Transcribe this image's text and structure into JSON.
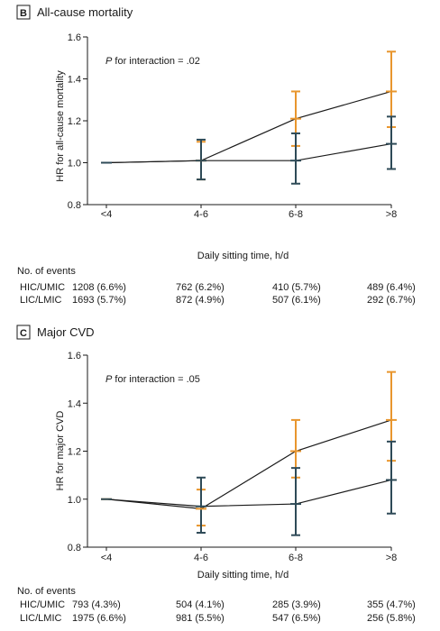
{
  "panels": [
    {
      "letter": "B",
      "title": "All-cause mortality",
      "annotation_p": "P",
      "annotation_rest": " for interaction = .02",
      "events_label": "No. of events",
      "events": [
        {
          "group": "HIC/UMIC",
          "values": [
            "1208 (6.6%)",
            "762 (6.2%)",
            "410 (5.7%)",
            "489 (6.4%)"
          ]
        },
        {
          "group": "LIC/LMIC",
          "values": [
            "1693 (5.7%)",
            "872 (4.9%)",
            "507 (6.1%)",
            "292 (6.7%)"
          ]
        }
      ]
    },
    {
      "letter": "C",
      "title": "Major CVD",
      "annotation_p": "P",
      "annotation_rest": " for interaction = .05",
      "events_label": "No. of events",
      "events": [
        {
          "group": "HIC/UMIC",
          "values": [
            "793 (4.3%)",
            "504 (4.1%)",
            "285 (3.9%)",
            "355 (4.7%)"
          ]
        },
        {
          "group": "LIC/LMIC",
          "values": [
            "1975 (6.6%)",
            "981 (5.5%)",
            "547 (6.5%)",
            "256 (5.8%)"
          ]
        }
      ]
    }
  ],
  "colors": {
    "orange": "#e8962e",
    "teal": "#2e4a57",
    "line": "#1a1a1a"
  },
  "chart_data": [
    {
      "type": "line",
      "title": "All-cause mortality",
      "xlabel": "Daily sitting time, h/d",
      "ylabel": "HR for all-cause mortality",
      "categories": [
        "<4",
        "4-6",
        "6-8",
        ">8"
      ],
      "ylim": [
        0.8,
        1.6
      ],
      "yticks": [
        "0.8",
        "1.0",
        "1.2",
        "1.4",
        "1.6"
      ],
      "series": [
        {
          "color": "orange",
          "values": [
            1.0,
            1.01,
            1.21,
            1.34
          ],
          "lower": [
            1.0,
            0.92,
            1.08,
            1.17
          ],
          "upper": [
            1.0,
            1.1,
            1.34,
            1.53
          ]
        },
        {
          "color": "teal",
          "values": [
            1.0,
            1.01,
            1.01,
            1.09
          ],
          "lower": [
            1.0,
            0.92,
            0.9,
            0.97
          ],
          "upper": [
            1.0,
            1.11,
            1.14,
            1.22
          ]
        }
      ]
    },
    {
      "type": "line",
      "title": "Major CVD",
      "xlabel": "Daily sitting time, h/d",
      "ylabel": "HR for major CVD",
      "categories": [
        "<4",
        "4-6",
        "6-8",
        ">8"
      ],
      "ylim": [
        0.8,
        1.6
      ],
      "yticks": [
        "0.8",
        "1.0",
        "1.2",
        "1.4",
        "1.6"
      ],
      "series": [
        {
          "color": "orange",
          "values": [
            1.0,
            0.96,
            1.2,
            1.33
          ],
          "lower": [
            1.0,
            0.89,
            1.09,
            1.16
          ],
          "upper": [
            1.0,
            1.04,
            1.33,
            1.53
          ]
        },
        {
          "color": "teal",
          "values": [
            1.0,
            0.97,
            0.98,
            1.08
          ],
          "lower": [
            1.0,
            0.86,
            0.85,
            0.94
          ],
          "upper": [
            1.0,
            1.09,
            1.13,
            1.24
          ]
        }
      ]
    }
  ]
}
